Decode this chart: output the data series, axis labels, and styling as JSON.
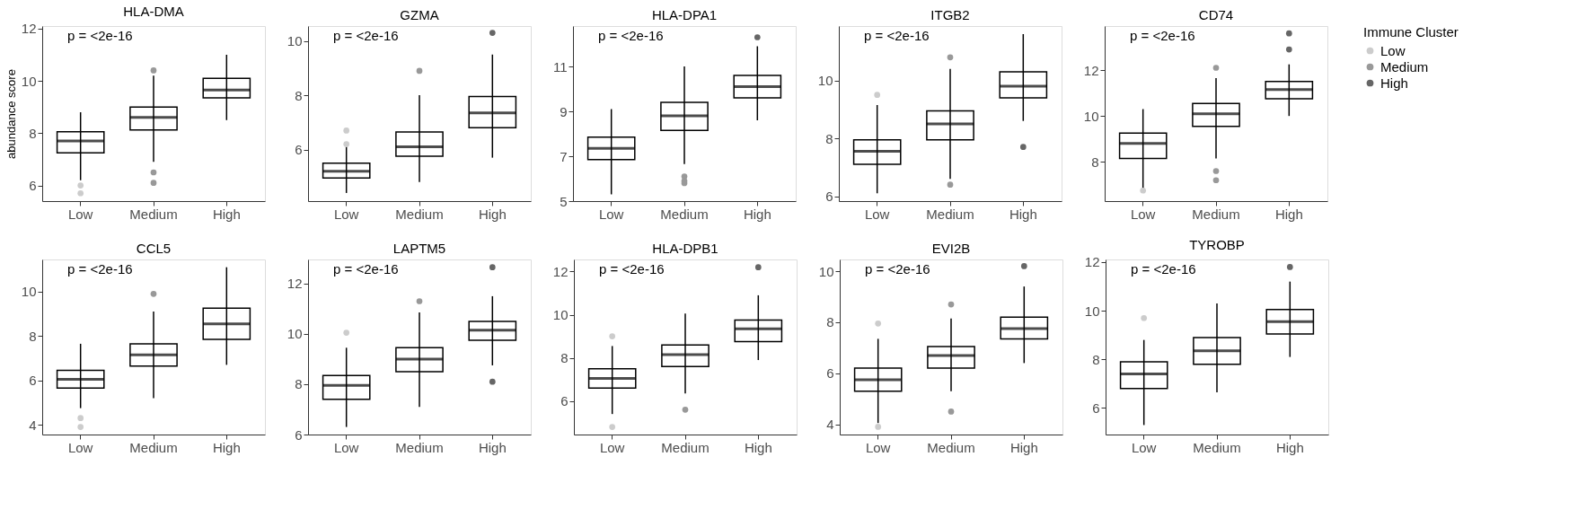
{
  "chart_data": [
    {
      "type": "box",
      "title": "HLA-DMA",
      "ylabel": "abundance score",
      "categories": [
        "Low",
        "Medium",
        "High"
      ],
      "ylim": [
        5.4,
        12.1
      ],
      "grid": false,
      "yticks": [
        6,
        8,
        10,
        12
      ],
      "annotations": [
        "p = <2e-16"
      ],
      "boxes": [
        {
          "low": 6.2,
          "q1": 7.25,
          "median": 7.7,
          "q3": 8.05,
          "high": 8.8
        },
        {
          "low": 6.9,
          "q1": 8.12,
          "median": 8.6,
          "q3": 9.0,
          "high": 10.2
        },
        {
          "low": 8.5,
          "q1": 9.35,
          "median": 9.65,
          "q3": 10.1,
          "high": 11.0
        }
      ],
      "series": [
        {
          "type": "scatter",
          "color": "#cccccc",
          "x": [
            "Low",
            "Low"
          ],
          "values": [
            6.0,
            5.7
          ]
        },
        {
          "type": "scatter",
          "color": "#999999",
          "x": [
            "Medium",
            "Medium",
            "Medium"
          ],
          "values": [
            6.5,
            6.1,
            10.4
          ]
        }
      ]
    },
    {
      "type": "box",
      "title": "GZMA",
      "categories": [
        "Low",
        "Medium",
        "High"
      ],
      "ylim": [
        4.1,
        10.55
      ],
      "grid": false,
      "yticks": [
        6,
        8,
        10
      ],
      "annotations": [
        "p = <2e-16"
      ],
      "boxes": [
        {
          "low": 4.4,
          "q1": 4.95,
          "median": 5.2,
          "q3": 5.5,
          "high": 6.1
        },
        {
          "low": 4.8,
          "q1": 5.75,
          "median": 6.1,
          "q3": 6.65,
          "high": 8.0
        },
        {
          "low": 5.7,
          "q1": 6.8,
          "median": 7.35,
          "q3": 7.95,
          "high": 9.5
        }
      ],
      "series": [
        {
          "type": "scatter",
          "color": "#cccccc",
          "x": [
            "Low",
            "Low"
          ],
          "values": [
            6.2,
            6.7
          ]
        },
        {
          "type": "scatter",
          "color": "#999999",
          "x": [
            "Medium"
          ],
          "values": [
            8.9
          ]
        },
        {
          "type": "scatter",
          "color": "#666666",
          "x": [
            "High"
          ],
          "values": [
            10.3
          ]
        }
      ]
    },
    {
      "type": "box",
      "title": "HLA-DPA1",
      "categories": [
        "Low",
        "Medium",
        "High"
      ],
      "ylim": [
        5,
        12.8
      ],
      "grid": false,
      "yticks": [
        5,
        7,
        9,
        11
      ],
      "annotations": [
        "p = <2e-16"
      ],
      "boxes": [
        {
          "low": 5.3,
          "q1": 6.85,
          "median": 7.35,
          "q3": 7.85,
          "high": 9.1
        },
        {
          "low": 6.65,
          "q1": 8.15,
          "median": 8.8,
          "q3": 9.4,
          "high": 11.0
        },
        {
          "low": 8.6,
          "q1": 9.6,
          "median": 10.1,
          "q3": 10.6,
          "high": 11.9
        }
      ],
      "series": [
        {
          "type": "scatter",
          "color": "#999999",
          "x": [
            "Medium",
            "Medium",
            "Medium"
          ],
          "values": [
            5.8,
            6.1,
            5.9
          ]
        },
        {
          "type": "scatter",
          "color": "#666666",
          "x": [
            "High"
          ],
          "values": [
            12.3
          ]
        }
      ]
    },
    {
      "type": "box",
      "title": "ITGB2",
      "categories": [
        "Low",
        "Medium",
        "High"
      ],
      "ylim": [
        5.83,
        11.88
      ],
      "grid": false,
      "yticks": [
        6,
        8,
        10
      ],
      "annotations": [
        "p = <2e-16"
      ],
      "boxes": [
        {
          "low": 6.1,
          "q1": 7.1,
          "median": 7.55,
          "q3": 7.95,
          "high": 9.15
        },
        {
          "low": 6.6,
          "q1": 7.95,
          "median": 8.5,
          "q3": 8.95,
          "high": 10.4
        },
        {
          "low": 8.6,
          "q1": 9.4,
          "median": 9.8,
          "q3": 10.3,
          "high": 11.6
        }
      ],
      "series": [
        {
          "type": "scatter",
          "color": "#cccccc",
          "x": [
            "Low"
          ],
          "values": [
            9.5
          ]
        },
        {
          "type": "scatter",
          "color": "#999999",
          "x": [
            "Medium",
            "Medium"
          ],
          "values": [
            6.4,
            10.8
          ]
        },
        {
          "type": "scatter",
          "color": "#666666",
          "x": [
            "High"
          ],
          "values": [
            7.7
          ]
        }
      ]
    },
    {
      "type": "box",
      "title": "CD74",
      "categories": [
        "Low",
        "Medium",
        "High"
      ],
      "ylim": [
        6.29,
        13.92
      ],
      "grid": false,
      "yticks": [
        8,
        10,
        12
      ],
      "annotations": [
        "p = <2e-16"
      ],
      "legend": "right",
      "legend_title": "Immune Cluster",
      "boxes": [
        {
          "low": 6.7,
          "q1": 8.15,
          "median": 8.8,
          "q3": 9.25,
          "high": 10.3
        },
        {
          "low": 8.15,
          "q1": 9.55,
          "median": 10.1,
          "q3": 10.55,
          "high": 11.65
        },
        {
          "low": 10.0,
          "q1": 10.75,
          "median": 11.15,
          "q3": 11.5,
          "high": 12.25
        }
      ],
      "series": [
        {
          "name": "Low",
          "type": "scatter",
          "color": "#cccccc",
          "x": [
            "Low"
          ],
          "values": [
            6.75
          ]
        },
        {
          "name": "Medium",
          "type": "scatter",
          "color": "#999999",
          "x": [
            "Medium",
            "Medium",
            "Medium"
          ],
          "values": [
            7.2,
            7.6,
            12.1
          ]
        },
        {
          "name": "High",
          "type": "scatter",
          "color": "#666666",
          "x": [
            "High",
            "High"
          ],
          "values": [
            13.6,
            12.9
          ]
        }
      ]
    },
    {
      "type": "box",
      "title": "CCL5",
      "categories": [
        "Low",
        "Medium",
        "High"
      ],
      "ylim": [
        3.56,
        11.45
      ],
      "grid": false,
      "yticks": [
        4,
        6,
        8,
        10
      ],
      "annotations": [
        "p = <2e-16"
      ],
      "boxes": [
        {
          "low": 4.75,
          "q1": 5.65,
          "median": 6.05,
          "q3": 6.45,
          "high": 7.65
        },
        {
          "low": 5.2,
          "q1": 6.65,
          "median": 7.15,
          "q3": 7.65,
          "high": 9.1
        },
        {
          "low": 6.7,
          "q1": 7.85,
          "median": 8.55,
          "q3": 9.25,
          "high": 11.1
        }
      ],
      "series": [
        {
          "type": "scatter",
          "color": "#cccccc",
          "x": [
            "Low",
            "Low"
          ],
          "values": [
            4.3,
            3.9
          ]
        },
        {
          "type": "scatter",
          "color": "#999999",
          "x": [
            "Medium"
          ],
          "values": [
            9.9
          ]
        }
      ]
    },
    {
      "type": "box",
      "title": "LAPTM5",
      "categories": [
        "Low",
        "Medium",
        "High"
      ],
      "ylim": [
        6,
        12.96
      ],
      "grid": false,
      "yticks": [
        6,
        8,
        10,
        12
      ],
      "annotations": [
        "p = <2e-16"
      ],
      "boxes": [
        {
          "low": 6.3,
          "q1": 7.4,
          "median": 7.95,
          "q3": 8.35,
          "high": 9.45
        },
        {
          "low": 7.1,
          "q1": 8.5,
          "median": 9.0,
          "q3": 9.45,
          "high": 10.85
        },
        {
          "low": 8.75,
          "q1": 9.75,
          "median": 10.15,
          "q3": 10.5,
          "high": 11.5
        }
      ],
      "series": [
        {
          "type": "scatter",
          "color": "#cccccc",
          "x": [
            "Low"
          ],
          "values": [
            10.05
          ]
        },
        {
          "type": "scatter",
          "color": "#999999",
          "x": [
            "Medium"
          ],
          "values": [
            11.3
          ]
        },
        {
          "type": "scatter",
          "color": "#666666",
          "x": [
            "High",
            "High"
          ],
          "values": [
            12.65,
            8.1
          ]
        }
      ]
    },
    {
      "type": "box",
      "title": "HLA-DPB1",
      "categories": [
        "Low",
        "Medium",
        "High"
      ],
      "ylim": [
        4.45,
        12.56
      ],
      "grid": false,
      "yticks": [
        6,
        8,
        10,
        12
      ],
      "annotations": [
        "p = <2e-16"
      ],
      "boxes": [
        {
          "low": 5.4,
          "q1": 6.6,
          "median": 7.05,
          "q3": 7.5,
          "high": 8.55
        },
        {
          "low": 6.35,
          "q1": 7.6,
          "median": 8.15,
          "q3": 8.6,
          "high": 10.05
        },
        {
          "low": 7.9,
          "q1": 8.75,
          "median": 9.35,
          "q3": 9.75,
          "high": 10.9
        }
      ],
      "series": [
        {
          "type": "scatter",
          "color": "#cccccc",
          "x": [
            "Low",
            "Low"
          ],
          "values": [
            4.8,
            9.0
          ]
        },
        {
          "type": "scatter",
          "color": "#999999",
          "x": [
            "Medium"
          ],
          "values": [
            5.6
          ]
        },
        {
          "type": "scatter",
          "color": "#666666",
          "x": [
            "High"
          ],
          "values": [
            12.2
          ]
        }
      ]
    },
    {
      "type": "box",
      "title": "EVI2B",
      "categories": [
        "Low",
        "Medium",
        "High"
      ],
      "ylim": [
        3.6,
        10.46
      ],
      "grid": false,
      "yticks": [
        4,
        6,
        8,
        10
      ],
      "annotations": [
        "p = <2e-16"
      ],
      "boxes": [
        {
          "low": 4.05,
          "q1": 5.3,
          "median": 5.75,
          "q3": 6.2,
          "high": 7.35
        },
        {
          "low": 5.3,
          "q1": 6.2,
          "median": 6.7,
          "q3": 7.05,
          "high": 8.15
        },
        {
          "low": 6.4,
          "q1": 7.35,
          "median": 7.75,
          "q3": 8.2,
          "high": 9.4
        }
      ],
      "series": [
        {
          "type": "scatter",
          "color": "#cccccc",
          "x": [
            "Low",
            "Low"
          ],
          "values": [
            7.95,
            3.9
          ]
        },
        {
          "type": "scatter",
          "color": "#999999",
          "x": [
            "Medium",
            "Medium"
          ],
          "values": [
            4.5,
            8.7
          ]
        },
        {
          "type": "scatter",
          "color": "#666666",
          "x": [
            "High"
          ],
          "values": [
            10.2
          ]
        }
      ]
    },
    {
      "type": "box",
      "title": "TYROBP",
      "categories": [
        "Low",
        "Medium",
        "High"
      ],
      "ylim": [
        4.91,
        12.11
      ],
      "grid": false,
      "yticks": [
        6,
        8,
        10,
        12
      ],
      "annotations": [
        "p = <2e-16"
      ],
      "boxes": [
        {
          "low": 5.3,
          "q1": 6.8,
          "median": 7.4,
          "q3": 7.9,
          "high": 8.8
        },
        {
          "low": 6.65,
          "q1": 7.8,
          "median": 8.35,
          "q3": 8.9,
          "high": 10.3
        },
        {
          "low": 8.1,
          "q1": 9.05,
          "median": 9.55,
          "q3": 10.05,
          "high": 11.2
        }
      ],
      "series": [
        {
          "type": "scatter",
          "color": "#cccccc",
          "x": [
            "Low"
          ],
          "values": [
            9.7
          ]
        },
        {
          "type": "scatter",
          "color": "#666666",
          "x": [
            "High"
          ],
          "values": [
            11.8
          ]
        }
      ]
    }
  ]
}
